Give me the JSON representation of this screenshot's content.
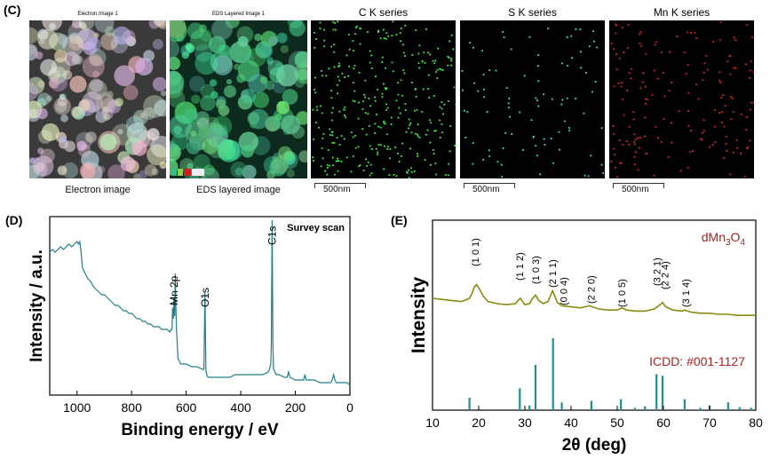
{
  "panel_c": {
    "label": "(C)",
    "maps": [
      {
        "title": "Electron Image 1",
        "caption": "Electron image",
        "kind": "electron",
        "scale": ""
      },
      {
        "title": "EDS Layered Image 1",
        "caption": "EDS layered image",
        "kind": "layered",
        "scale": ""
      },
      {
        "title": "C K series",
        "caption": "",
        "kind": "green",
        "scale": "500nm"
      },
      {
        "title": "S K series",
        "caption": "",
        "kind": "cyan",
        "scale": "500nm"
      },
      {
        "title": "Mn K series",
        "caption": "",
        "kind": "red",
        "scale": "500nm"
      }
    ]
  },
  "chart_data": [
    {
      "panel_label": "(D)",
      "type": "line",
      "title": "Survey scan",
      "xlabel": "Binding energy / eV",
      "ylabel": "Intensity / a.u.",
      "xlim": [
        1100,
        0
      ],
      "x_ticks": [
        "1000",
        "800",
        "600",
        "400",
        "200",
        "0"
      ],
      "x_tick_values": [
        1000,
        800,
        600,
        400,
        200,
        0
      ],
      "y_ticks_shown": false,
      "color": "#1f7f86",
      "x": [
        1100,
        1090,
        1080,
        1070,
        1060,
        1050,
        1040,
        1030,
        1020,
        1010,
        1000,
        995,
        990,
        985,
        980,
        975,
        970,
        960,
        950,
        940,
        930,
        920,
        910,
        900,
        890,
        880,
        870,
        860,
        850,
        840,
        830,
        820,
        810,
        800,
        790,
        780,
        770,
        760,
        750,
        740,
        730,
        720,
        710,
        700,
        690,
        680,
        670,
        660,
        655,
        652,
        650,
        647,
        645,
        642,
        640,
        637,
        635,
        630,
        625,
        620,
        600,
        580,
        560,
        540,
        535,
        531,
        528,
        525,
        520,
        500,
        480,
        460,
        440,
        420,
        400,
        380,
        360,
        340,
        320,
        300,
        295,
        290,
        288,
        285,
        282,
        280,
        275,
        270,
        260,
        240,
        230,
        225,
        220,
        200,
        180,
        170,
        165,
        160,
        150,
        130,
        110,
        100,
        90,
        80,
        75,
        70,
        65,
        60,
        55,
        50,
        45,
        40,
        30,
        20,
        10,
        0
      ],
      "y": [
        0.5,
        0.51,
        0.5,
        0.51,
        0.52,
        0.51,
        0.52,
        0.53,
        0.52,
        0.53,
        0.54,
        0.53,
        0.54,
        0.5,
        0.44,
        0.43,
        0.42,
        0.4,
        0.39,
        0.37,
        0.36,
        0.35,
        0.34,
        0.34,
        0.33,
        0.32,
        0.31,
        0.3,
        0.3,
        0.29,
        0.28,
        0.28,
        0.27,
        0.27,
        0.26,
        0.25,
        0.25,
        0.24,
        0.24,
        0.23,
        0.23,
        0.22,
        0.22,
        0.22,
        0.21,
        0.21,
        0.21,
        0.2,
        0.21,
        0.21,
        0.29,
        0.25,
        0.33,
        0.26,
        0.42,
        0.26,
        0.2,
        0.1,
        0.09,
        0.08,
        0.08,
        0.07,
        0.07,
        0.06,
        0.06,
        0.35,
        0.06,
        0.04,
        0.03,
        0.03,
        0.03,
        0.03,
        0.03,
        0.04,
        0.04,
        0.04,
        0.04,
        0.04,
        0.04,
        0.05,
        0.06,
        0.08,
        0.15,
        0.62,
        0.15,
        0.06,
        0.05,
        0.04,
        0.04,
        0.03,
        0.03,
        0.05,
        0.03,
        0.02,
        0.02,
        0.02,
        0.04,
        0.02,
        0.02,
        0.02,
        0.01,
        0.01,
        0.01,
        0.01,
        0.01,
        0.01,
        0.02,
        0.04,
        0.02,
        0.01,
        0.01,
        0.01,
        0.01,
        0.01,
        0.01,
        0.0
      ],
      "annotations": [
        {
          "text": "Mn 2p",
          "x": 645
        },
        {
          "text": "O1s",
          "x": 531
        },
        {
          "text": "C1s",
          "x": 285
        }
      ]
    },
    {
      "panel_label": "(E)",
      "type": "line",
      "xlabel": "2θ (deg)",
      "ylabel": "Intensity",
      "xlim": [
        10,
        80
      ],
      "x_ticks": [
        "10",
        "20",
        "30",
        "40",
        "50",
        "60",
        "70",
        "80"
      ],
      "x_tick_values": [
        10,
        20,
        30,
        40,
        50,
        60,
        70,
        80
      ],
      "y_ticks_shown": false,
      "series": [
        {
          "name": "dMn3O4",
          "label_parts": {
            "base": "dMn",
            "sub1": "3",
            "mid": "O",
            "sub2": "4"
          },
          "label_color": "#b02020",
          "color": "#8a8a10",
          "x": [
            10,
            12,
            14,
            16,
            17,
            18,
            18.5,
            19,
            19.5,
            20,
            21,
            22,
            24,
            26,
            28,
            28.5,
            29,
            29.5,
            30,
            31,
            31.5,
            32.3,
            33,
            34,
            35,
            35.5,
            36,
            36.5,
            37,
            38,
            40,
            42,
            44,
            46,
            48,
            50,
            51,
            52,
            54,
            56,
            58,
            59,
            59.8,
            60.5,
            62,
            64,
            64.6,
            66,
            68,
            70,
            72,
            74,
            76,
            78,
            80
          ],
          "y": [
            0.2,
            0.19,
            0.18,
            0.17,
            0.18,
            0.2,
            0.24,
            0.3,
            0.33,
            0.3,
            0.22,
            0.17,
            0.15,
            0.14,
            0.15,
            0.18,
            0.2,
            0.17,
            0.14,
            0.15,
            0.19,
            0.23,
            0.18,
            0.15,
            0.17,
            0.22,
            0.27,
            0.22,
            0.16,
            0.13,
            0.12,
            0.11,
            0.13,
            0.1,
            0.09,
            0.09,
            0.11,
            0.09,
            0.08,
            0.08,
            0.1,
            0.13,
            0.16,
            0.12,
            0.09,
            0.08,
            0.09,
            0.07,
            0.06,
            0.06,
            0.05,
            0.05,
            0.04,
            0.04,
            0.04
          ]
        },
        {
          "name": "ICDD: #001-1127",
          "label_color": "#b02020",
          "color": "#1f8f8f",
          "type": "stick",
          "x": [
            18.0,
            28.9,
            31.0,
            32.3,
            36.1,
            38.0,
            44.4,
            50.8,
            53.8,
            56.0,
            58.5,
            59.8,
            64.6,
            68.0,
            70.0,
            74.0,
            76.5,
            79.0
          ],
          "y": [
            0.16,
            0.28,
            0.06,
            0.58,
            0.92,
            0.1,
            0.12,
            0.14,
            0.03,
            0.05,
            0.46,
            0.44,
            0.14,
            0.03,
            0.06,
            0.1,
            0.04,
            0.03
          ]
        }
      ],
      "annotations": [
        {
          "text": "(1 0 1)",
          "x": 19.2
        },
        {
          "text": "(1 1 2)",
          "x": 28.8
        },
        {
          "text": "(1 0 3)",
          "x": 32.3
        },
        {
          "text": "(2 1 1)",
          "x": 36.0
        },
        {
          "text": "(0 0 4)",
          "x": 38.4
        },
        {
          "text": "(2 2 0)",
          "x": 44.3
        },
        {
          "text": "(1 0 5)",
          "x": 51.0
        },
        {
          "text": "(3 2 1)",
          "x": 58.6
        },
        {
          "text": "(2 2 4)",
          "x": 60.3
        },
        {
          "text": "(3 1 4)",
          "x": 64.8
        }
      ]
    }
  ]
}
